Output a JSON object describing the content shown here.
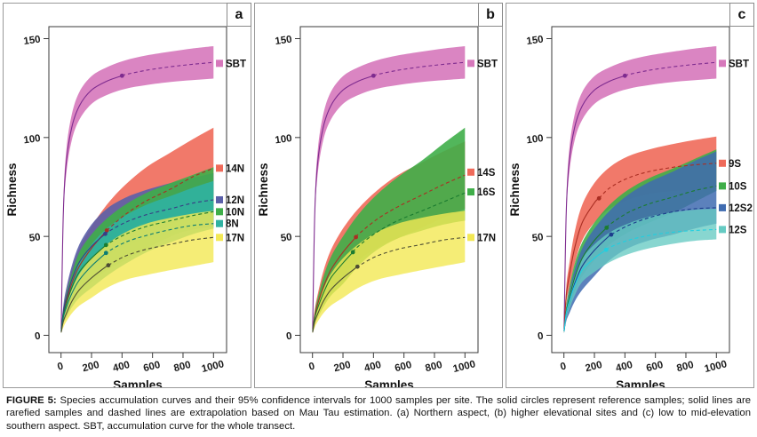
{
  "figure": {
    "caption_label": "FIGURE 5:",
    "caption_text": "Species accumulation curves and their 95% confidence intervals for 1000 samples per site. The solid circles represent reference samples; solid lines are rarefied samples and dashed lines are extrapolation based on Mau Tau estimation. (a) Northern aspect, (b) higher elevational sites and (c) low to mid-elevation southern aspect. SBT, accumulation curve for the whole transect."
  },
  "axes": {
    "x_label": "Samples",
    "y_label": "Richness",
    "x_ticks": [
      0,
      200,
      400,
      600,
      800,
      1000
    ],
    "y_ticks": [
      0,
      50,
      100,
      150
    ],
    "x_range": [
      0,
      1000
    ],
    "y_range": [
      0,
      150
    ],
    "grid": "off",
    "legend_position": "right-outside-plot"
  },
  "chart_data": [
    {
      "type": "line",
      "panel_label": "a",
      "panel_description": "Northern aspect",
      "x": [
        1,
        15,
        35,
        70,
        120,
        200,
        300,
        420,
        560,
        720,
        860,
        1000
      ],
      "series": [
        {
          "name": "SBT",
          "band_color": "#d678bb",
          "line_color": "#7e2b8f",
          "band_opacity": 0.9,
          "ref_sample": 400,
          "label_y": 137.5,
          "center": [
            3,
            62,
            88,
            105,
            116,
            124,
            128.5,
            131.8,
            134,
            135.8,
            137,
            138
          ],
          "upper": [
            5,
            66,
            94,
            111.5,
            123,
            131,
            135.5,
            139,
            141.5,
            143.5,
            145,
            146.2
          ],
          "lower": [
            2,
            58,
            82,
            98.5,
            109,
            117,
            121.5,
            124.6,
            126.5,
            128.1,
            129,
            129.8
          ]
        },
        {
          "name": "14N",
          "band_color": "#ef6a5a",
          "line_color": "#aa2e23",
          "band_opacity": 0.9,
          "ref_sample": 300,
          "label_y": 84.5,
          "center": [
            2,
            10,
            17,
            26,
            35,
            44,
            53,
            61,
            68,
            74,
            80,
            84.5
          ],
          "upper": [
            3,
            13,
            22,
            33,
            44,
            55,
            66,
            76,
            85,
            92.5,
            99,
            105
          ],
          "lower": [
            1,
            7,
            12,
            19,
            26,
            33,
            40,
            46,
            51,
            55.5,
            61,
            65
          ]
        },
        {
          "name": "12N",
          "band_color": "#5a5fa9",
          "line_color": "#383d85",
          "band_opacity": 0.9,
          "ref_sample": 290,
          "label_y": 68.5,
          "center": [
            2,
            12,
            19,
            28,
            37,
            45,
            52,
            57,
            61,
            64,
            66.8,
            68.5
          ],
          "upper": [
            3,
            15,
            24,
            35,
            46,
            56,
            64,
            69.5,
            73.5,
            77,
            79.5,
            82
          ],
          "lower": [
            1,
            9,
            14,
            21,
            28,
            34,
            40,
            44.5,
            48.5,
            51,
            53.3,
            55
          ]
        },
        {
          "name": "10N",
          "band_color": "#3fae49",
          "line_color": "#1b7c30",
          "band_opacity": 0.9,
          "ref_sample": 295,
          "label_y": 62.5,
          "center": [
            2,
            10,
            16,
            24,
            32,
            39,
            46,
            51,
            55,
            58,
            60.5,
            62.5
          ],
          "upper": [
            3,
            13,
            21,
            31,
            42,
            51,
            59,
            66,
            72,
            77,
            81,
            85
          ],
          "lower": [
            1,
            7,
            11,
            17,
            22,
            27,
            33,
            38,
            44,
            50,
            54,
            58
          ]
        },
        {
          "name": "8N",
          "band_color": "#30b2a1",
          "line_color": "#0c7d72",
          "band_opacity": 0.9,
          "ref_sample": 295,
          "label_y": 56.5,
          "center": [
            2,
            9,
            14,
            21,
            28,
            35,
            42,
            47,
            50.5,
            53.5,
            55.5,
            56.5
          ],
          "upper": [
            3,
            12,
            19,
            28,
            37,
            46,
            54,
            60.5,
            66,
            70.5,
            74.5,
            78
          ],
          "lower": [
            1,
            6,
            9,
            14,
            19,
            24,
            30,
            36,
            42,
            47,
            51,
            54
          ]
        },
        {
          "name": "17N",
          "band_color": "#f2e854",
          "line_color": "#4d4d33",
          "band_opacity": 0.8,
          "ref_sample": 310,
          "label_y": 49.5,
          "center": [
            1.5,
            7,
            11,
            17,
            23,
            29,
            35,
            40,
            43.5,
            46,
            48.2,
            49.5
          ],
          "upper": [
            2.5,
            10,
            15,
            23,
            31,
            39,
            46,
            52,
            56.5,
            59.5,
            61.5,
            63
          ],
          "lower": [
            1,
            4,
            7,
            11,
            15,
            19,
            24,
            28,
            30.5,
            33,
            35,
            37
          ]
        }
      ]
    },
    {
      "type": "line",
      "panel_label": "b",
      "panel_description": "higher elevational sites",
      "x": [
        1,
        15,
        35,
        70,
        120,
        200,
        300,
        420,
        560,
        720,
        860,
        1000
      ],
      "series": [
        {
          "name": "SBT",
          "band_color": "#d678bb",
          "line_color": "#7e2b8f",
          "band_opacity": 0.9,
          "ref_sample": 400,
          "label_y": 137.5,
          "center": [
            3,
            62,
            88,
            105,
            116,
            124,
            128.5,
            131.8,
            134,
            135.8,
            137,
            138
          ],
          "upper": [
            5,
            66,
            94,
            111.5,
            123,
            131,
            135.5,
            139,
            141.5,
            143.5,
            145,
            146.2
          ],
          "lower": [
            2,
            58,
            82,
            98.5,
            109,
            117,
            121.5,
            124.6,
            126.5,
            128.1,
            129,
            129.8
          ]
        },
        {
          "name": "14S",
          "band_color": "#ef6a5a",
          "line_color": "#aa2e23",
          "band_opacity": 0.9,
          "ref_sample": 285,
          "label_y": 82.5,
          "center": [
            2,
            10,
            16,
            24,
            33,
            42,
            51,
            58.5,
            65,
            71,
            76.3,
            81
          ],
          "upper": [
            3,
            13,
            21,
            32,
            43,
            54,
            64,
            73,
            81,
            87.5,
            93,
            98
          ],
          "lower": [
            1,
            7,
            11,
            17,
            23,
            30,
            38,
            44,
            49,
            54.5,
            59.5,
            64
          ]
        },
        {
          "name": "16S",
          "band_color": "#3fae49",
          "line_color": "#1b7c30",
          "band_opacity": 0.9,
          "ref_sample": 265,
          "label_y": 72.5,
          "center": [
            2,
            9,
            14,
            21,
            29,
            36.5,
            45,
            52,
            58,
            63,
            67.5,
            72
          ],
          "upper": [
            3,
            12,
            19,
            29,
            39.5,
            50,
            61,
            71,
            80,
            88.5,
            97,
            105
          ],
          "lower": [
            1,
            6,
            9,
            14,
            20,
            26,
            35,
            43,
            49,
            53,
            56,
            58
          ]
        },
        {
          "name": "17N",
          "band_color": "#f2e854",
          "line_color": "#4d4d33",
          "band_opacity": 0.8,
          "ref_sample": 295,
          "label_y": 49.5,
          "center": [
            1.5,
            7,
            11,
            17,
            23,
            29,
            35,
            40,
            43.5,
            46,
            48.2,
            49.5
          ],
          "upper": [
            2.5,
            10,
            15,
            23,
            31,
            39,
            46,
            52,
            56.5,
            59.5,
            61.5,
            63
          ],
          "lower": [
            1,
            4,
            7,
            11,
            15,
            19,
            24,
            28,
            30.5,
            33,
            35,
            37
          ]
        }
      ]
    },
    {
      "type": "line",
      "panel_label": "c",
      "panel_description": "low to mid-elevation southern aspect",
      "x": [
        1,
        15,
        35,
        70,
        120,
        200,
        300,
        420,
        560,
        720,
        860,
        1000
      ],
      "series": [
        {
          "name": "SBT",
          "band_color": "#d678bb",
          "line_color": "#7e2b8f",
          "band_opacity": 0.9,
          "ref_sample": 400,
          "label_y": 137.5,
          "center": [
            3,
            62,
            88,
            105,
            116,
            124,
            128.5,
            131.8,
            134,
            135.8,
            137,
            138
          ],
          "upper": [
            5,
            66,
            94,
            111.5,
            123,
            131,
            135.5,
            139,
            141.5,
            143.5,
            145,
            146.2
          ],
          "lower": [
            2,
            58,
            82,
            98.5,
            109,
            117,
            121.5,
            124.6,
            126.5,
            128.1,
            129,
            129.8
          ]
        },
        {
          "name": "9S",
          "band_color": "#ef6a5a",
          "line_color": "#aa2e23",
          "band_opacity": 0.9,
          "ref_sample": 230,
          "label_y": 87,
          "center": [
            2,
            20,
            30,
            44,
            57,
            67,
            74.5,
            79.5,
            82.8,
            85,
            86.2,
            87
          ],
          "upper": [
            3,
            24,
            36,
            52,
            66,
            77,
            85,
            90.5,
            94,
            96.8,
            98.8,
            100.5
          ],
          "lower": [
            1,
            16,
            24,
            36,
            48,
            57,
            64,
            68.5,
            71.5,
            73,
            73.4,
            73.5
          ]
        },
        {
          "name": "10S",
          "band_color": "#3fae49",
          "line_color": "#1b7c30",
          "band_opacity": 0.9,
          "ref_sample": 280,
          "label_y": 75.5,
          "center": [
            2,
            12,
            19,
            29,
            39,
            48,
            56,
            62,
            66.5,
            70,
            73.2,
            75.5
          ],
          "upper": [
            3,
            15,
            24,
            36,
            47,
            57,
            66,
            73.5,
            79.5,
            84.5,
            89.3,
            94
          ],
          "lower": [
            1,
            9,
            14,
            22,
            30,
            38,
            46,
            52,
            57,
            62,
            67.5,
            73
          ]
        },
        {
          "name": "12S2",
          "band_color": "#3f6bb0",
          "line_color": "#1c3c8c",
          "band_opacity": 0.85,
          "ref_sample": 310,
          "label_y": 64.5,
          "center": [
            2,
            11,
            17,
            26,
            35,
            43,
            50.5,
            55.5,
            59.5,
            62.5,
            64,
            64.5
          ],
          "upper": [
            3,
            14,
            22,
            33,
            44,
            54,
            63,
            71,
            77.5,
            83,
            88.3,
            93
          ],
          "lower": [
            1,
            7,
            11,
            17,
            23,
            30,
            38,
            44,
            48,
            51,
            54,
            56.5
          ]
        },
        {
          "name": "12S",
          "band_color": "#66cbc3",
          "line_color": "#21cfe0",
          "band_opacity": 0.78,
          "ref_sample": 277,
          "label_y": 53.5,
          "center": [
            2,
            11,
            17,
            25,
            33,
            39,
            44.5,
            48,
            50.5,
            52.2,
            53,
            53.5
          ],
          "upper": [
            3,
            14,
            21,
            30,
            39,
            46,
            52,
            56.5,
            60,
            62.3,
            63.5,
            64
          ],
          "lower": [
            1,
            8,
            13,
            20,
            27,
            32,
            37,
            41,
            44,
            46.3,
            47.8,
            48.5
          ]
        }
      ]
    }
  ]
}
